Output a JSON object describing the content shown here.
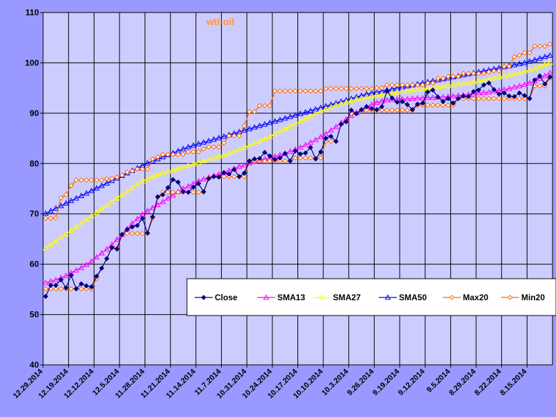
{
  "chart_data": {
    "type": "line",
    "title": "wti-oil",
    "xlabel": "",
    "ylabel": "",
    "ylim": [
      40,
      110
    ],
    "yticks": [
      40,
      50,
      60,
      70,
      80,
      90,
      100,
      110
    ],
    "x_axis_reversed": true,
    "x_tick_labels": [
      "12.29.2014",
      "12.19.2014",
      "12.12.2014",
      "12.5.2014",
      "11.28.2014",
      "11.21.2014",
      "11.14.2014",
      "11.7.2014",
      "10.31.2014",
      "10.24.2014",
      "10.17.2014",
      "10.10.2014",
      "10.3.2014",
      "9.26.2014",
      "9.19.2014",
      "9.12.2014",
      "9.5.2014",
      "8.29.2014",
      "8.22.2014",
      "8.15.2014"
    ],
    "grid": true,
    "legend_position": "lower-right",
    "colors": {
      "plot_background": "#ccccff",
      "outer_background": "#9999ff",
      "title": "#ff9933",
      "Close": "#000080",
      "SMA13": "#ff00ff",
      "SMA27": "#ffff00",
      "SMA50": "#0000ff",
      "Max20": "#ff6600",
      "Min20": "#ff6600"
    },
    "point_count": 100,
    "series": [
      {
        "name": "Close",
        "marker": "diamond-filled",
        "values": [
          53.6,
          55.8,
          55.8,
          56.9,
          55.3,
          57.8,
          55.1,
          56.1,
          55.7,
          55.5,
          57.6,
          59.2,
          61.1,
          63.3,
          63.0,
          65.9,
          66.9,
          67.4,
          67.7,
          69.1,
          66.2,
          69.4,
          73.4,
          73.8,
          75.2,
          76.8,
          76.3,
          74.4,
          74.3,
          75.3,
          76.0,
          74.4,
          77.0,
          77.4,
          77.3,
          78.2,
          77.9,
          78.8,
          77.4,
          78.1,
          80.5,
          80.9,
          81.0,
          82.2,
          81.5,
          80.8,
          81.1,
          82.0,
          80.5,
          82.5,
          81.9,
          82.1,
          83.2,
          80.9,
          82.3,
          85.0,
          85.4,
          84.4,
          87.8,
          88.3,
          90.6,
          89.9,
          90.7,
          91.3,
          90.9,
          90.7,
          91.3,
          94.4,
          93.0,
          92.2,
          92.3,
          91.7,
          90.7,
          91.8,
          92.0,
          94.2,
          94.6,
          93.2,
          92.3,
          92.9,
          92.0,
          92.9,
          93.4,
          93.3,
          94.3,
          94.6,
          95.6,
          96.0,
          94.7,
          93.8,
          94.0,
          93.4,
          93.3,
          94.0,
          93.5,
          92.9,
          96.6,
          97.4,
          95.8,
          97.2
        ]
      },
      {
        "name": "SMA13",
        "marker": "triangle",
        "values": [
          56.3,
          56.6,
          56.9,
          57.3,
          57.7,
          58.3,
          58.8,
          59.3,
          59.9,
          60.6,
          61.4,
          62.2,
          63.0,
          63.9,
          64.9,
          65.9,
          67.0,
          68.1,
          69.0,
          69.9,
          70.6,
          71.2,
          71.8,
          72.4,
          73.1,
          73.7,
          74.4,
          75.0,
          75.5,
          76.0,
          76.5,
          76.9,
          77.3,
          77.6,
          77.9,
          78.2,
          78.6,
          79.0,
          79.4,
          79.7,
          80.1,
          80.4,
          80.6,
          80.9,
          81.1,
          81.4,
          81.7,
          82.0,
          82.4,
          82.8,
          83.2,
          83.7,
          84.2,
          84.7,
          85.3,
          85.9,
          86.6,
          87.3,
          88.1,
          88.8,
          89.5,
          90.1,
          90.7,
          91.3,
          91.7,
          92.1,
          92.4,
          92.6,
          92.7,
          92.8,
          92.8,
          92.8,
          92.9,
          93.0,
          93.0,
          93.1,
          93.1,
          93.2,
          93.2,
          93.3,
          93.4,
          93.5,
          93.6,
          93.7,
          93.8,
          94.0,
          94.1,
          94.2,
          94.4,
          94.5,
          94.7,
          94.9,
          95.2,
          95.4,
          95.7,
          96.0,
          96.4,
          96.9,
          97.4,
          98.0
        ]
      },
      {
        "name": "SMA27",
        "marker": "triangle",
        "values": [
          63.2,
          63.9,
          64.6,
          65.3,
          66.0,
          66.7,
          67.4,
          68.1,
          68.8,
          69.6,
          70.3,
          71.0,
          71.7,
          72.4,
          73.1,
          73.8,
          74.5,
          75.2,
          75.9,
          76.5,
          77.0,
          77.4,
          77.8,
          78.1,
          78.4,
          78.7,
          79.0,
          79.3,
          79.6,
          79.9,
          80.2,
          80.5,
          80.8,
          81.1,
          81.4,
          81.7,
          82.0,
          82.4,
          82.8,
          83.2,
          83.6,
          84.0,
          84.4,
          84.9,
          85.4,
          85.9,
          86.4,
          86.9,
          87.4,
          87.9,
          88.4,
          88.9,
          89.4,
          89.9,
          90.4,
          90.8,
          91.2,
          91.6,
          91.9,
          92.2,
          92.5,
          92.8,
          93.0,
          93.2,
          93.4,
          93.6,
          93.7,
          93.9,
          94.0,
          94.2,
          94.3,
          94.4,
          94.6,
          94.7,
          94.8,
          95.0,
          95.1,
          95.2,
          95.4,
          95.5,
          95.6,
          95.8,
          95.9,
          96.0,
          96.2,
          96.4,
          96.6,
          96.8,
          97.0,
          97.2,
          97.4,
          97.6,
          97.8,
          98.0,
          98.3,
          98.6,
          98.9,
          99.3,
          99.7,
          100.1
        ]
      },
      {
        "name": "SMA50",
        "marker": "triangle",
        "values": [
          70.1,
          70.6,
          71.1,
          71.6,
          72.1,
          72.6,
          73.1,
          73.6,
          74.1,
          74.6,
          75.1,
          75.6,
          76.1,
          76.6,
          77.1,
          77.6,
          78.1,
          78.6,
          79.1,
          79.6,
          80.1,
          80.5,
          80.9,
          81.3,
          81.7,
          82.1,
          82.5,
          82.9,
          83.3,
          83.6,
          83.9,
          84.2,
          84.5,
          84.8,
          85.1,
          85.4,
          85.7,
          86.0,
          86.3,
          86.6,
          86.9,
          87.2,
          87.5,
          87.8,
          88.1,
          88.4,
          88.7,
          89.0,
          89.3,
          89.6,
          89.9,
          90.2,
          90.5,
          90.8,
          91.1,
          91.4,
          91.7,
          92.0,
          92.3,
          92.6,
          92.9,
          93.2,
          93.5,
          93.8,
          94.0,
          94.2,
          94.4,
          94.6,
          94.8,
          95.0,
          95.2,
          95.4,
          95.6,
          95.8,
          96.0,
          96.2,
          96.4,
          96.6,
          96.8,
          97.0,
          97.2,
          97.4,
          97.6,
          97.8,
          98.0,
          98.2,
          98.4,
          98.6,
          98.8,
          99.0,
          99.2,
          99.4,
          99.6,
          99.8,
          100.0,
          100.3,
          100.6,
          100.9,
          101.2,
          101.5
        ]
      },
      {
        "name": "Max20",
        "marker": "diamond-open",
        "values": [
          69.1,
          69.1,
          69.2,
          73.2,
          73.8,
          75.6,
          76.7,
          76.7,
          76.7,
          76.7,
          76.7,
          76.7,
          77.0,
          77.0,
          77.3,
          77.7,
          78.3,
          78.5,
          78.9,
          78.9,
          78.9,
          80.9,
          81.3,
          81.8,
          81.8,
          81.8,
          81.8,
          81.8,
          82.3,
          82.3,
          82.3,
          82.9,
          83.3,
          83.3,
          83.3,
          84.1,
          85.5,
          85.5,
          85.5,
          87.5,
          90.3,
          90.3,
          91.5,
          91.5,
          91.5,
          94.4,
          94.4,
          94.4,
          94.4,
          94.4,
          94.4,
          94.4,
          94.4,
          94.4,
          94.4,
          94.9,
          94.9,
          94.9,
          94.9,
          94.9,
          94.9,
          94.9,
          94.9,
          94.9,
          94.9,
          95.0,
          95.0,
          95.6,
          95.6,
          95.6,
          95.6,
          95.6,
          95.6,
          95.6,
          95.6,
          96.0,
          96.0,
          96.9,
          96.9,
          97.3,
          97.3,
          97.3,
          97.9,
          97.9,
          97.9,
          97.9,
          97.9,
          98.2,
          98.4,
          98.4,
          99.3,
          99.3,
          101.2,
          101.5,
          102.0,
          102.0,
          103.3,
          103.3,
          103.3,
          103.7
        ]
      },
      {
        "name": "Min20",
        "marker": "diamond-open",
        "values": [
          55.1,
          55.1,
          55.1,
          55.1,
          55.1,
          55.1,
          55.1,
          55.1,
          55.1,
          55.1,
          57.2,
          59.2,
          61.1,
          63.2,
          63.2,
          65.9,
          66.1,
          66.1,
          66.1,
          66.1,
          66.1,
          69.1,
          73.3,
          74.3,
          74.3,
          74.3,
          74.3,
          74.3,
          74.3,
          74.3,
          74.3,
          74.3,
          77.2,
          77.4,
          77.4,
          77.4,
          77.4,
          77.4,
          77.4,
          77.4,
          80.5,
          80.5,
          80.5,
          80.5,
          80.5,
          80.5,
          80.5,
          80.5,
          80.5,
          81.1,
          81.1,
          81.1,
          81.1,
          81.1,
          81.1,
          84.4,
          84.4,
          84.4,
          87.8,
          88.3,
          89.9,
          89.9,
          90.6,
          90.6,
          90.6,
          90.6,
          90.6,
          90.6,
          90.6,
          90.6,
          90.6,
          90.6,
          90.6,
          91.6,
          91.6,
          91.6,
          91.6,
          91.6,
          91.6,
          91.6,
          91.6,
          92.9,
          92.9,
          92.9,
          92.9,
          92.9,
          92.9,
          92.9,
          92.9,
          92.9,
          92.9,
          92.9,
          92.9,
          92.9,
          92.9,
          92.9,
          95.4,
          95.4,
          95.4,
          97.0
        ]
      }
    ]
  }
}
